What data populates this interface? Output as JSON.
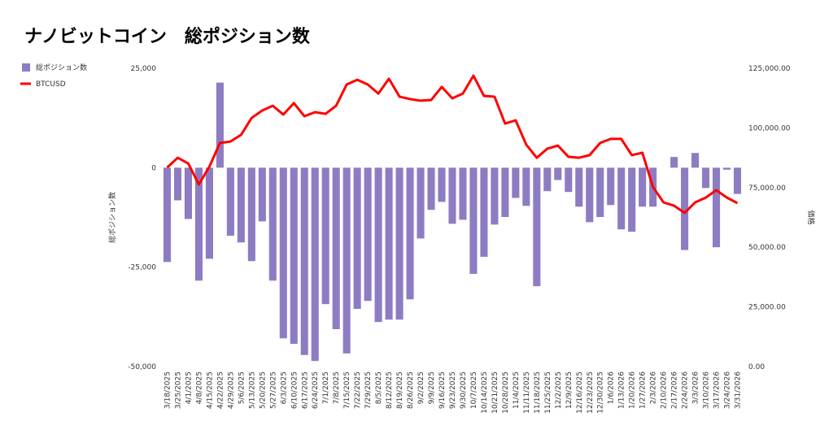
{
  "chart_data": {
    "type": "bar_line",
    "title": "ナノビットコイン　総ポジション数",
    "categories": [
      "3/18/2025",
      "3/25/2025",
      "4/1/2025",
      "4/8/2025",
      "4/15/2025",
      "4/22/2025",
      "4/29/2025",
      "5/6/2025",
      "5/13/2025",
      "5/20/2025",
      "5/27/2025",
      "6/3/2025",
      "6/10/2025",
      "6/17/2025",
      "6/24/2025",
      "7/1/2025",
      "7/8/2025",
      "7/15/2025",
      "7/22/2025",
      "7/29/2025",
      "8/5/2025",
      "8/12/2025",
      "8/19/2025",
      "8/26/2025",
      "9/2/2025",
      "9/9/2025",
      "9/16/2025",
      "9/23/2025",
      "9/30/2025",
      "10/7/2025",
      "10/14/2025",
      "10/21/2025",
      "10/28/2025",
      "11/4/2025",
      "11/11/2025",
      "11/18/2025",
      "11/25/2025",
      "12/2/2025",
      "12/9/2025",
      "12/16/2025",
      "12/23/2025",
      "12/30/2025",
      "1/6/2026",
      "1/13/2026",
      "1/20/2026",
      "1/27/2026",
      "2/3/2026",
      "2/10/2026",
      "2/17/2026",
      "2/24/2026",
      "3/3/2026",
      "3/10/2026",
      "3/17/2026",
      "3/24/2026",
      "3/31/2026"
    ],
    "series": [
      {
        "name": "総ポジション数",
        "color": "#8e7cc3",
        "axis": "y",
        "values": [
          -23700,
          -8200,
          -12900,
          -28400,
          -22900,
          21400,
          -17100,
          -18800,
          -23500,
          -13500,
          -28400,
          -42900,
          -44300,
          -47100,
          -48600,
          -34300,
          -40600,
          -46700,
          -35500,
          -33500,
          -38800,
          -38200,
          -38200,
          -33100,
          -17800,
          -10600,
          -8600,
          -14100,
          -13100,
          -26700,
          -22400,
          -14300,
          -12400,
          -7600,
          -9600,
          -29800,
          -5900,
          -3100,
          -6100,
          -9800,
          -13700,
          -12400,
          -9400,
          -15500,
          -16100,
          -9800,
          -9800,
          0,
          2700,
          -20700,
          3700,
          -5100,
          -20000,
          -500,
          -6600
        ]
      },
      {
        "name": "BTCUSD",
        "color": "#ff0000",
        "axis": "y2",
        "values": [
          83400,
          87500,
          85100,
          76300,
          83800,
          93700,
          94300,
          97100,
          104200,
          107300,
          109300,
          105600,
          110400,
          104900,
          106600,
          105900,
          109300,
          118200,
          120200,
          118200,
          114400,
          120600,
          113100,
          112100,
          111400,
          111700,
          117200,
          112400,
          114400,
          121900,
          113400,
          113100,
          101800,
          103200,
          93000,
          87500,
          91300,
          92600,
          87900,
          87500,
          88600,
          93700,
          95400,
          95400,
          88600,
          89600,
          75300,
          68800,
          67400,
          64400,
          68800,
          70800,
          73900,
          70800,
          68500
        ]
      }
    ],
    "y_label": "総ポジション数",
    "y2_label": "価格",
    "ylim": [
      -50000,
      25000
    ],
    "yticks": [
      {
        "value": -50000,
        "label": "-50,000"
      },
      {
        "value": -25000,
        "label": "-25,000"
      },
      0,
      {
        "value": 25000,
        "label": "25,000"
      }
    ],
    "y2lim": [
      0,
      125000
    ],
    "y2ticks": [
      {
        "value": 0,
        "label": "0.00"
      },
      {
        "value": 25000,
        "label": "25,000.00"
      },
      {
        "value": 50000,
        "label": "50,000.00"
      },
      {
        "value": 75000,
        "label": "75,000.00"
      },
      {
        "value": 100000,
        "label": "100,000.00"
      },
      {
        "value": 125000,
        "label": "125,000.00"
      }
    ],
    "legend": "top-left"
  }
}
